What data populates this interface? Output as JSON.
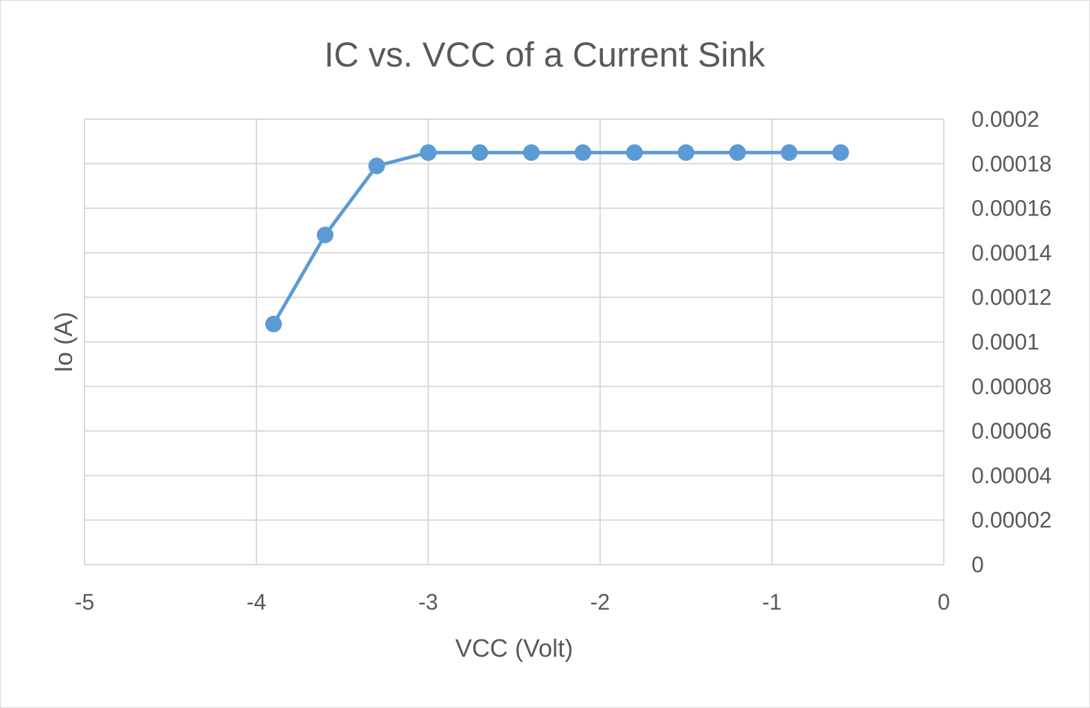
{
  "chart_data": {
    "type": "scatter",
    "title": "IC vs. VCC of a Current Sink",
    "xlabel": "VCC (Volt)",
    "ylabel": "Io (A)",
    "xlim": [
      -5,
      0
    ],
    "ylim": [
      0,
      0.0002
    ],
    "x_ticks": [
      "-5",
      "-4",
      "-3",
      "-2",
      "-1",
      "0"
    ],
    "y_ticks": [
      "0",
      "0.00002",
      "0.00004",
      "0.00006",
      "0.00008",
      "0.0001",
      "0.00012",
      "0.00014",
      "0.00016",
      "0.00018",
      "0.0002"
    ],
    "y_axis_side": "right",
    "grid": true,
    "series": [
      {
        "color": "#5b9bd5",
        "x": [
          -3.9,
          -3.6,
          -3.3,
          -3.0,
          -2.7,
          -2.4,
          -2.1,
          -1.8,
          -1.5,
          -1.2,
          -0.9,
          -0.6
        ],
        "y": [
          0.000108,
          0.000148,
          0.000179,
          0.000185,
          0.000185,
          0.000185,
          0.000185,
          0.000185,
          0.000185,
          0.000185,
          0.000185,
          0.000185
        ]
      }
    ]
  }
}
